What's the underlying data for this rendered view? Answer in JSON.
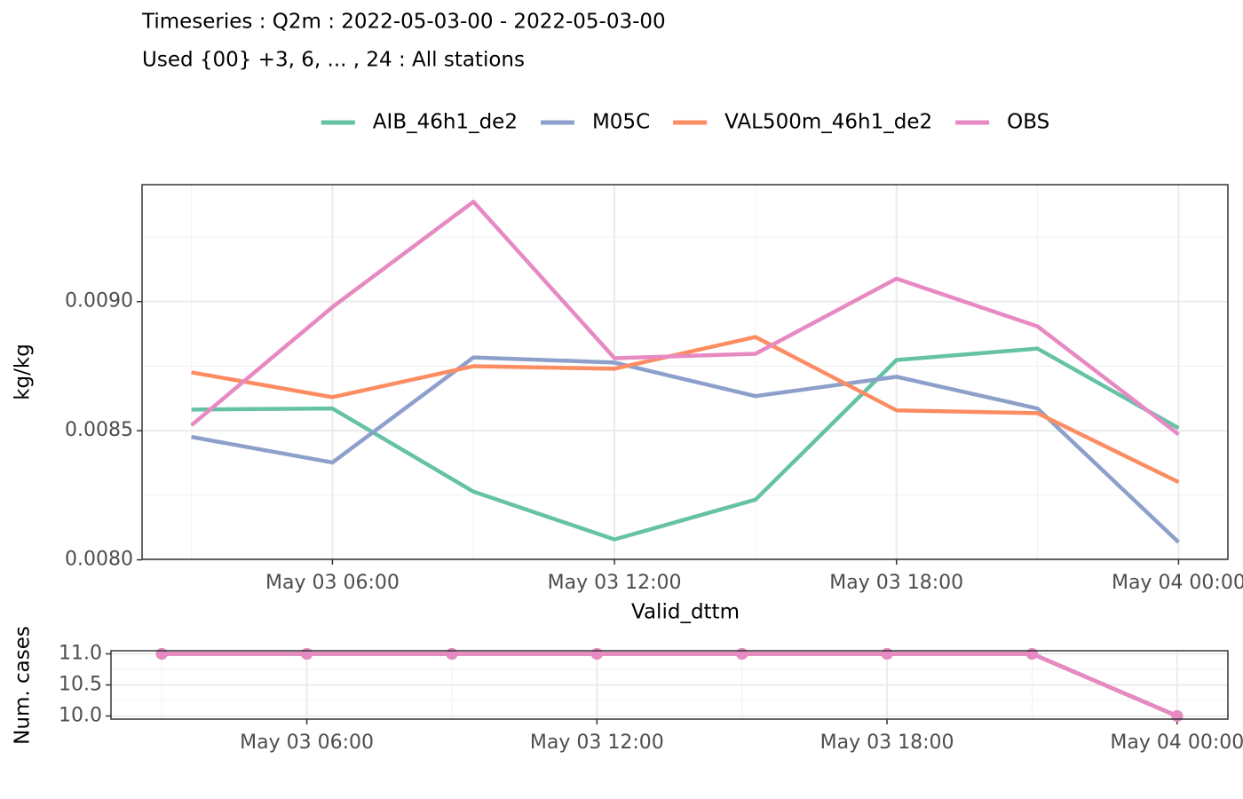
{
  "chart_data": [
    {
      "type": "line",
      "title": "Timeseries : Q2m : 2022-05-03-00 - 2022-05-03-00",
      "subtitle": "Used {00} +3, 6, ... , 24 : All stations",
      "x_label": "Valid_dttm",
      "y_label": "kg/kg",
      "x": [
        "May 03 03:00",
        "May 03 06:00",
        "May 03 09:00",
        "May 03 12:00",
        "May 03 15:00",
        "May 03 18:00",
        "May 03 21:00",
        "May 04 00:00"
      ],
      "xlim": [
        "May 03 01:57",
        "May 04 01:03"
      ],
      "xticks": [
        "May 03 06:00",
        "May 03 12:00",
        "May 03 18:00",
        "May 04 00:00"
      ],
      "ylim": [
        0.008002,
        0.009453
      ],
      "yticks": [
        {
          "value": 0.008,
          "label": "0.0080"
        },
        {
          "value": 0.0085,
          "label": "0.0085"
        },
        {
          "value": 0.009,
          "label": "0.0090"
        }
      ],
      "grid": true,
      "legend": "top",
      "series": [
        {
          "name": "AIB_46h1_de2",
          "color": "#66c2a5",
          "values": [
            0.008582,
            0.008586,
            0.008264,
            0.008079,
            0.008233,
            0.008774,
            0.008818,
            0.00851
          ]
        },
        {
          "name": "M05C",
          "color": "#8da0cb",
          "values": [
            0.008476,
            0.008377,
            0.008784,
            0.008764,
            0.008634,
            0.008709,
            0.008586,
            0.008068
          ]
        },
        {
          "name": "VAL500m_46h1_de2",
          "color": "#fc8d62",
          "values": [
            0.008726,
            0.00863,
            0.00875,
            0.00874,
            0.008863,
            0.008579,
            0.008568,
            0.008301
          ]
        },
        {
          "name": "OBS",
          "color": "#e78ac3",
          "values": [
            0.008521,
            0.008979,
            0.009387,
            0.008781,
            0.008798,
            0.009089,
            0.008904,
            0.008486
          ]
        }
      ]
    },
    {
      "type": "line",
      "y_label": "Num. cases",
      "markers": true,
      "x": [
        "May 03 03:00",
        "May 03 06:00",
        "May 03 09:00",
        "May 03 12:00",
        "May 03 15:00",
        "May 03 18:00",
        "May 03 21:00",
        "May 04 00:00"
      ],
      "xlim": [
        "May 03 01:57",
        "May 04 01:03"
      ],
      "xticks": [
        "May 03 06:00",
        "May 03 12:00",
        "May 03 18:00",
        "May 04 00:00"
      ],
      "ylim": [
        9.95,
        11.05
      ],
      "yticks": [
        {
          "value": 10,
          "label": "10.0"
        },
        10.5,
        {
          "value": 11,
          "label": "11.0"
        }
      ],
      "grid": true,
      "series": [
        {
          "color": "#66c2a5",
          "values": [
            11,
            11,
            11,
            11,
            11,
            11,
            11,
            10
          ]
        },
        {
          "color": "#8da0cb",
          "values": [
            11,
            11,
            11,
            11,
            11,
            11,
            11,
            10
          ]
        },
        {
          "color": "#fc8d62",
          "values": [
            11,
            11,
            11,
            11,
            11,
            11,
            11,
            10
          ]
        },
        {
          "color": "#e78ac3",
          "values": [
            11,
            11,
            11,
            11,
            11,
            11,
            11,
            10
          ]
        }
      ]
    }
  ]
}
